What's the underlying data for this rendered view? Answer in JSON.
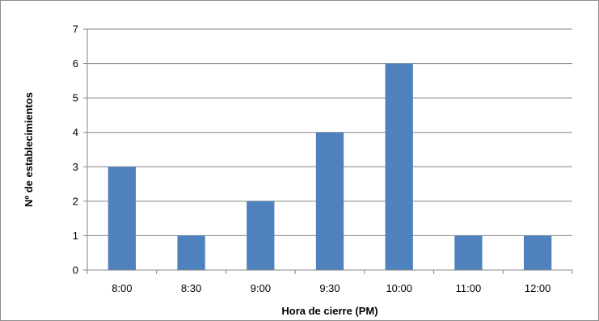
{
  "chart_data": {
    "type": "bar",
    "title": "",
    "xlabel": "Hora de cierre (PM)",
    "ylabel": "Nº de establecimientos",
    "categories": [
      "8:00",
      "8:30",
      "9:00",
      "9:30",
      "10:00",
      "11:00",
      "12:00"
    ],
    "values": [
      3,
      1,
      2,
      4,
      6,
      1,
      1
    ],
    "ylim": [
      0,
      7
    ],
    "yticks": [
      "0",
      "1",
      "2",
      "3",
      "4",
      "5",
      "6",
      "7"
    ],
    "grid": true,
    "legend": "none",
    "bar_color": "#4F81BD",
    "grid_color": "#868686"
  }
}
